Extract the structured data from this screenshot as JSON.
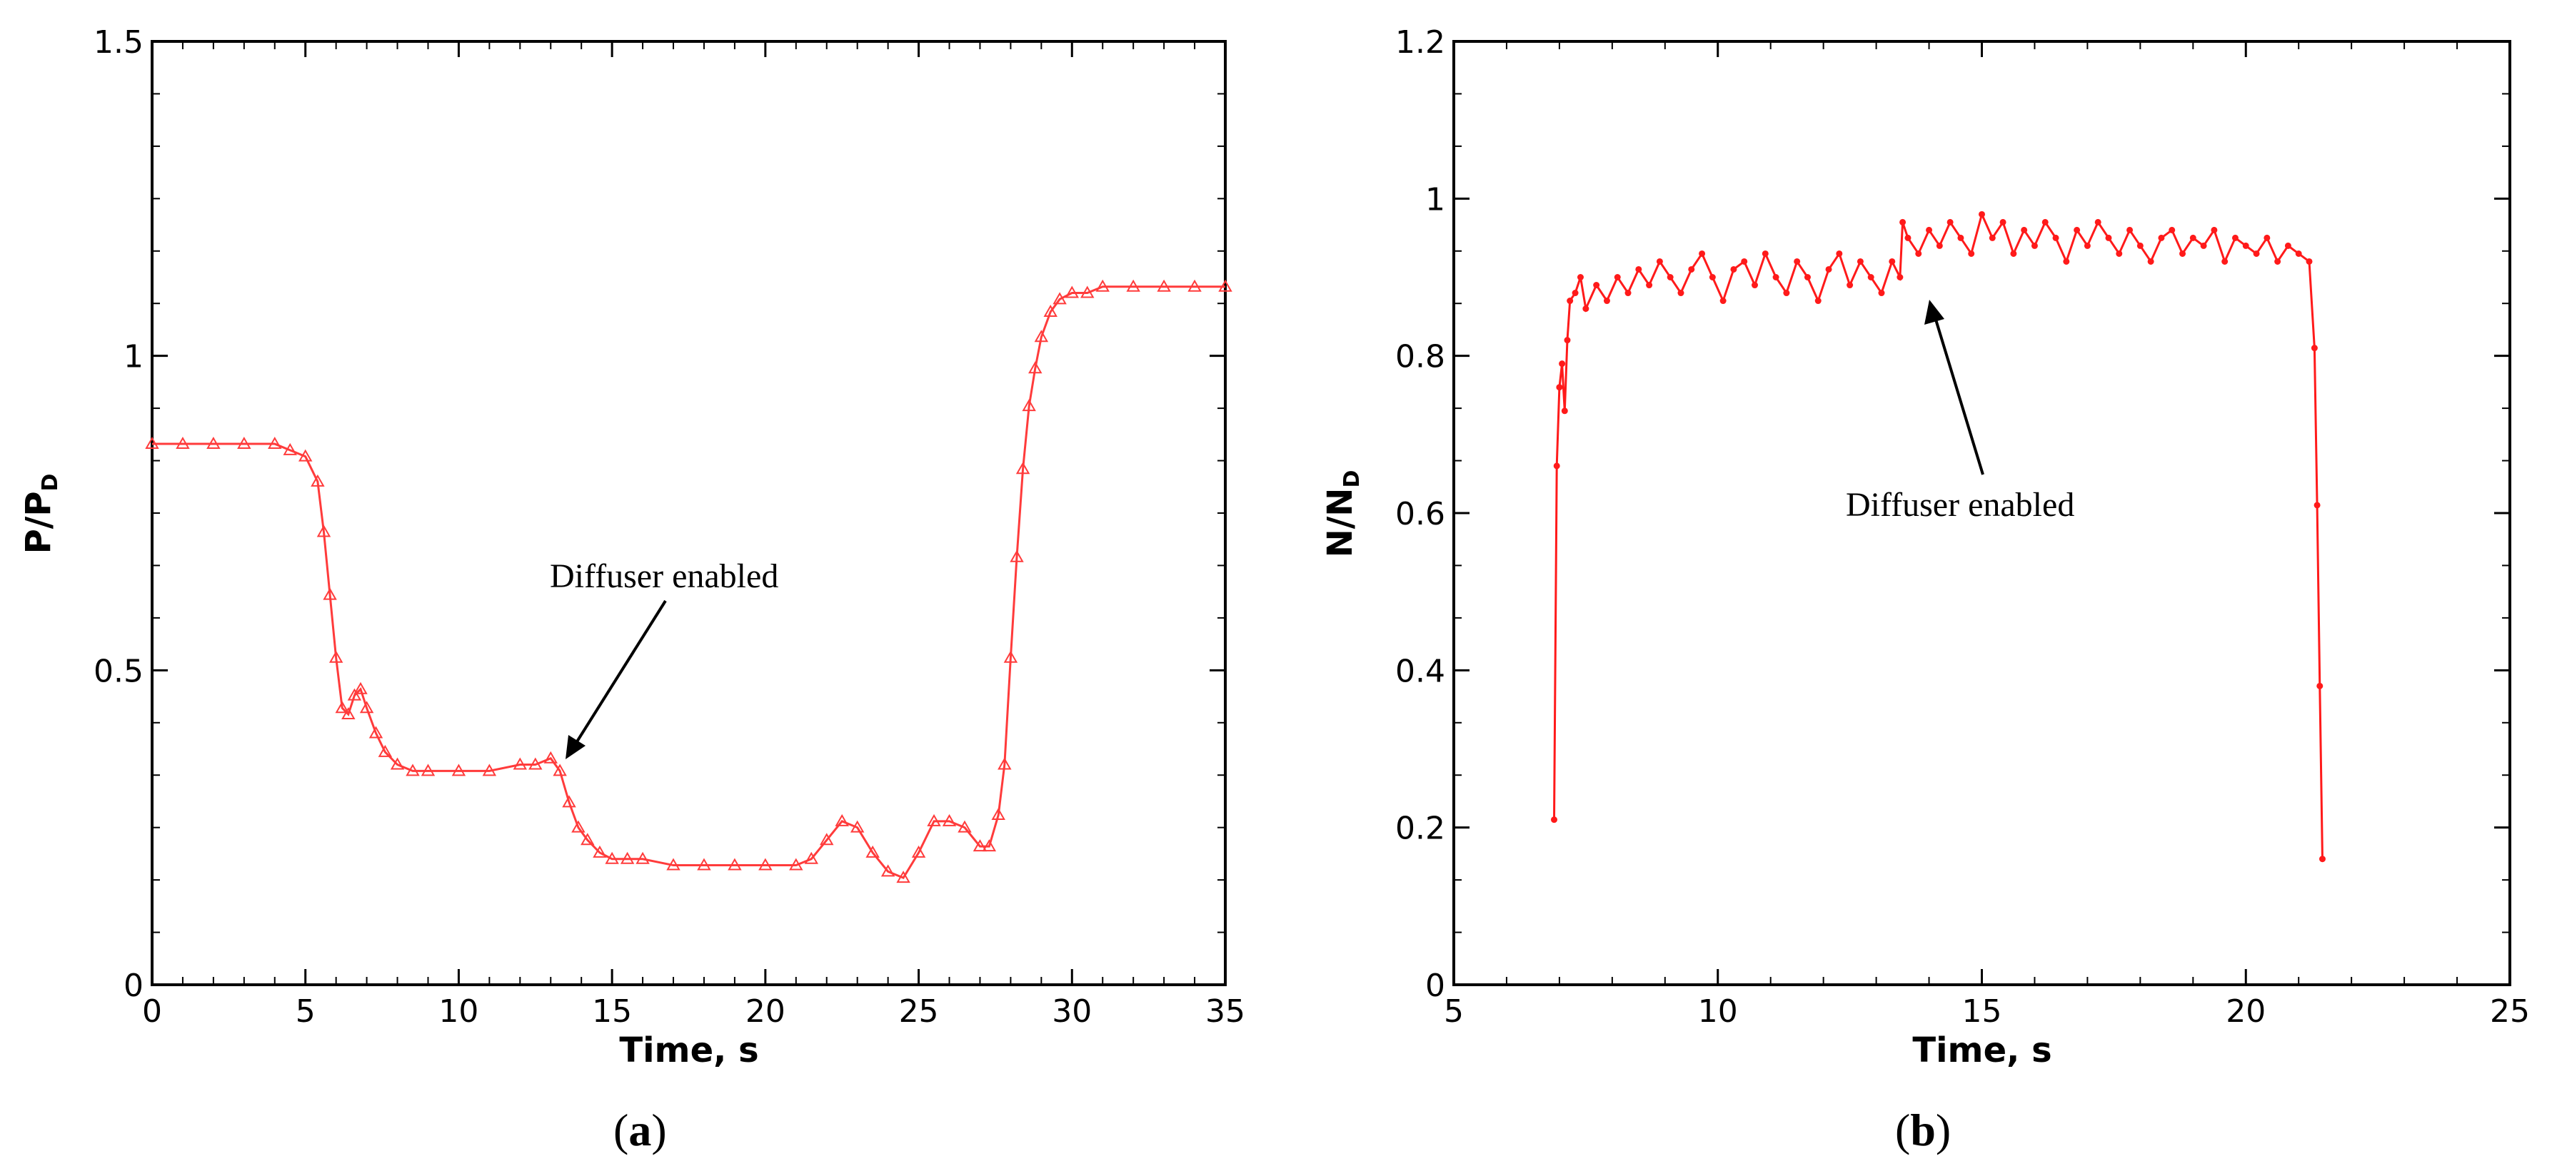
{
  "chart_data": [
    {
      "panel_label": "(a)",
      "panel_letter": "a",
      "type": "line",
      "xlabel": "Time, s",
      "ylabel": "P/P",
      "ylabel_sub": "D",
      "xlim": [
        0,
        35
      ],
      "ylim": [
        0,
        1.5
      ],
      "xticks": [
        0,
        5,
        10,
        15,
        20,
        25,
        30,
        35
      ],
      "xtick_labels": [
        "0",
        "5",
        "10",
        "15",
        "20",
        "25",
        "30",
        "35"
      ],
      "yticks": [
        0,
        0.5,
        1,
        1.5
      ],
      "ytick_labels": [
        "0",
        "0.5",
        "1",
        "1.5"
      ],
      "marker": "triangle",
      "series_color": "#ff3b3b",
      "annotation": {
        "text": "Diffuser enabled",
        "x": 13.5,
        "y": 0.36
      },
      "series": [
        {
          "name": "P/PD",
          "x": [
            0,
            1,
            2,
            3,
            4,
            4.5,
            5,
            5.4,
            5.6,
            5.8,
            6.0,
            6.2,
            6.4,
            6.6,
            6.8,
            7.0,
            7.3,
            7.6,
            8.0,
            8.5,
            9.0,
            10,
            11,
            12,
            12.5,
            13,
            13.3,
            13.6,
            13.9,
            14.2,
            14.6,
            15,
            15.5,
            16,
            17,
            18,
            19,
            20,
            21,
            21.5,
            22,
            22.5,
            23,
            23.5,
            24,
            24.5,
            25,
            25.5,
            26,
            26.5,
            27,
            27.3,
            27.6,
            27.8,
            28.0,
            28.2,
            28.4,
            28.6,
            28.8,
            29.0,
            29.3,
            29.6,
            30,
            30.5,
            31,
            32,
            33,
            34,
            35
          ],
          "y": [
            0.86,
            0.86,
            0.86,
            0.86,
            0.86,
            0.85,
            0.84,
            0.8,
            0.72,
            0.62,
            0.52,
            0.44,
            0.43,
            0.46,
            0.47,
            0.44,
            0.4,
            0.37,
            0.35,
            0.34,
            0.34,
            0.34,
            0.34,
            0.35,
            0.35,
            0.36,
            0.34,
            0.29,
            0.25,
            0.23,
            0.21,
            0.2,
            0.2,
            0.2,
            0.19,
            0.19,
            0.19,
            0.19,
            0.19,
            0.2,
            0.23,
            0.26,
            0.25,
            0.21,
            0.18,
            0.17,
            0.21,
            0.26,
            0.26,
            0.25,
            0.22,
            0.22,
            0.27,
            0.35,
            0.52,
            0.68,
            0.82,
            0.92,
            0.98,
            1.03,
            1.07,
            1.09,
            1.1,
            1.1,
            1.11,
            1.11,
            1.11,
            1.11,
            1.11
          ]
        }
      ]
    },
    {
      "panel_label": "(b)",
      "panel_letter": "b",
      "type": "line",
      "xlabel": "Time, s",
      "ylabel": "N/N",
      "ylabel_sub": "D",
      "xlim": [
        5,
        25
      ],
      "ylim": [
        0,
        1.2
      ],
      "xticks": [
        5,
        10,
        15,
        20,
        25
      ],
      "xtick_labels": [
        "5",
        "10",
        "15",
        "20",
        "25"
      ],
      "yticks": [
        0,
        0.2,
        0.4,
        0.6,
        0.8,
        1,
        1.2
      ],
      "ytick_labels": [
        "0",
        "0.2",
        "0.4",
        "0.6",
        "0.8",
        "1",
        "1.2"
      ],
      "marker": "circle",
      "series_color": "#ff1a1a",
      "annotation": {
        "text": "Diffuser enabled",
        "x": 13.6,
        "y": 0.88
      },
      "series": [
        {
          "name": "N/ND",
          "x": [
            6.9,
            6.95,
            7.0,
            7.05,
            7.1,
            7.15,
            7.2,
            7.3,
            7.4,
            7.5,
            7.7,
            7.9,
            8.1,
            8.3,
            8.5,
            8.7,
            8.9,
            9.1,
            9.3,
            9.5,
            9.7,
            9.9,
            10.1,
            10.3,
            10.5,
            10.7,
            10.9,
            11.1,
            11.3,
            11.5,
            11.7,
            11.9,
            12.1,
            12.3,
            12.5,
            12.7,
            12.9,
            13.1,
            13.3,
            13.45,
            13.5,
            13.6,
            13.8,
            14.0,
            14.2,
            14.4,
            14.6,
            14.8,
            15.0,
            15.2,
            15.4,
            15.6,
            15.8,
            16.0,
            16.2,
            16.4,
            16.6,
            16.8,
            17.0,
            17.2,
            17.4,
            17.6,
            17.8,
            18.0,
            18.2,
            18.4,
            18.6,
            18.8,
            19.0,
            19.2,
            19.4,
            19.6,
            19.8,
            20.0,
            20.2,
            20.4,
            20.6,
            20.8,
            21.0,
            21.2,
            21.3,
            21.35,
            21.4,
            21.45
          ],
          "y": [
            0.21,
            0.66,
            0.76,
            0.79,
            0.73,
            0.82,
            0.87,
            0.88,
            0.9,
            0.86,
            0.89,
            0.87,
            0.9,
            0.88,
            0.91,
            0.89,
            0.92,
            0.9,
            0.88,
            0.91,
            0.93,
            0.9,
            0.87,
            0.91,
            0.92,
            0.89,
            0.93,
            0.9,
            0.88,
            0.92,
            0.9,
            0.87,
            0.91,
            0.93,
            0.89,
            0.92,
            0.9,
            0.88,
            0.92,
            0.9,
            0.97,
            0.95,
            0.93,
            0.96,
            0.94,
            0.97,
            0.95,
            0.93,
            0.98,
            0.95,
            0.97,
            0.93,
            0.96,
            0.94,
            0.97,
            0.95,
            0.92,
            0.96,
            0.94,
            0.97,
            0.95,
            0.93,
            0.96,
            0.94,
            0.92,
            0.95,
            0.96,
            0.93,
            0.95,
            0.94,
            0.96,
            0.92,
            0.95,
            0.94,
            0.93,
            0.95,
            0.92,
            0.94,
            0.93,
            0.92,
            0.81,
            0.61,
            0.38,
            0.16
          ]
        }
      ]
    }
  ]
}
